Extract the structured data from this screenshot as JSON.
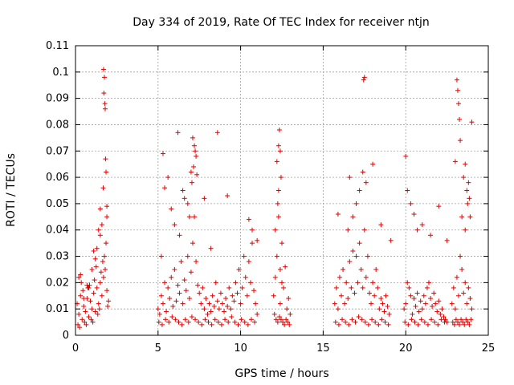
{
  "chart_data": {
    "type": "scatter",
    "title": "Day 334 of 2019, Rate Of TEC Index for receiver ntjn",
    "xlabel": "GPS time / hours",
    "ylabel": "ROTI / TECUs",
    "xlim": [
      0,
      25
    ],
    "ylim": [
      0,
      0.11
    ],
    "xticks": [
      "0",
      "5",
      "10",
      "15",
      "20",
      "25"
    ],
    "yticks": [
      "0",
      "0.01",
      "0.02",
      "0.03",
      "0.04",
      "0.05",
      "0.06",
      "0.07",
      "0.08",
      "0.09",
      "0.1",
      "0.11"
    ],
    "grid": true,
    "marker": "+",
    "color": "#e00000",
    "series": [
      {
        "name": "ROTI",
        "x": [
          0.1,
          0.2,
          0.3,
          0.4,
          0.5,
          0.6,
          0.7,
          0.8,
          0.9,
          1.0,
          1.1,
          1.2,
          1.3,
          1.4,
          1.5,
          1.6,
          1.7,
          1.8,
          1.9,
          2.0,
          0.15,
          0.35,
          0.55,
          0.75,
          0.95,
          1.15,
          1.35,
          1.55,
          1.75,
          1.95,
          0.25,
          0.45,
          0.65,
          0.85,
          1.05,
          1.25,
          1.45,
          1.65,
          1.85,
          0.3,
          0.7,
          1.1,
          1.5,
          1.9,
          1.7,
          1.75,
          1.72,
          1.78,
          1.8,
          1.82,
          1.68,
          1.85,
          1.9,
          1.6,
          1.3,
          1.5,
          1.4,
          1.2,
          1.0,
          0.8,
          0.5,
          0.2,
          5.0,
          5.1,
          5.2,
          5.3,
          5.4,
          5.5,
          5.6,
          5.7,
          5.8,
          5.9,
          6.0,
          6.1,
          6.2,
          6.3,
          6.4,
          6.5,
          6.6,
          6.7,
          6.8,
          6.9,
          7.0,
          7.1,
          7.2,
          7.3,
          7.4,
          7.5,
          7.6,
          7.7,
          7.8,
          7.9,
          8.0,
          8.1,
          8.2,
          8.3,
          8.4,
          8.5,
          8.6,
          8.7,
          8.8,
          8.9,
          9.0,
          9.1,
          9.2,
          9.3,
          9.4,
          9.5,
          9.6,
          9.7,
          9.8,
          9.9,
          10.0,
          10.1,
          10.2,
          10.3,
          10.4,
          10.5,
          10.6,
          10.7,
          10.8,
          10.9,
          11.0,
          5.05,
          5.25,
          5.45,
          5.65,
          5.85,
          6.05,
          6.25,
          6.45,
          6.65,
          6.85,
          7.05,
          7.25,
          7.45,
          7.65,
          7.85,
          8.05,
          8.25,
          8.45,
          8.65,
          8.85,
          9.05,
          9.25,
          9.45,
          9.65,
          9.85,
          10.05,
          10.25,
          10.45,
          10.65,
          10.85,
          5.2,
          5.4,
          5.6,
          5.8,
          6.0,
          6.3,
          6.6,
          6.9,
          7.0,
          7.1,
          7.2,
          7.3,
          7.15,
          7.25,
          7.05,
          7.35,
          6.2,
          6.5,
          6.8,
          5.3,
          8.6,
          9.2,
          10.5,
          10.7,
          11.0,
          7.8,
          8.2,
          12.0,
          12.1,
          12.2,
          12.3,
          12.4,
          12.5,
          12.6,
          12.7,
          12.8,
          12.9,
          13.0,
          12.05,
          12.15,
          12.25,
          12.35,
          12.45,
          12.55,
          12.65,
          12.75,
          12.85,
          12.95,
          12.2,
          12.3,
          12.35,
          12.4,
          12.45,
          12.3,
          12.25,
          12.5,
          12.1,
          12.4,
          15.7,
          15.8,
          15.9,
          16.0,
          16.1,
          16.2,
          16.3,
          16.4,
          16.5,
          16.6,
          16.7,
          16.8,
          16.9,
          17.0,
          17.1,
          17.2,
          17.3,
          17.4,
          17.5,
          17.6,
          17.7,
          17.8,
          17.9,
          18.0,
          18.1,
          18.2,
          18.3,
          18.4,
          18.5,
          18.6,
          18.7,
          18.8,
          18.9,
          19.0,
          15.75,
          15.95,
          16.15,
          16.35,
          16.55,
          16.75,
          16.95,
          17.15,
          17.35,
          17.55,
          17.75,
          17.95,
          18.15,
          18.35,
          18.55,
          18.75,
          18.95,
          16.6,
          16.8,
          17.0,
          17.2,
          17.4,
          17.6,
          17.5,
          17.45,
          18.0,
          18.5,
          19.1,
          15.9,
          16.5,
          19.9,
          20.0,
          20.1,
          20.2,
          20.3,
          20.4,
          20.5,
          20.6,
          20.7,
          20.8,
          20.9,
          21.0,
          21.1,
          21.2,
          21.3,
          21.4,
          21.5,
          21.6,
          21.7,
          21.8,
          21.9,
          22.0,
          22.1,
          22.2,
          22.3,
          22.4,
          22.5,
          19.95,
          20.15,
          20.35,
          20.55,
          20.75,
          20.95,
          21.15,
          21.35,
          21.55,
          21.75,
          21.95,
          22.15,
          22.35,
          20.0,
          20.1,
          20.3,
          20.5,
          20.7,
          21.0,
          21.5,
          22.0,
          22.5,
          22.8,
          22.9,
          23.0,
          23.1,
          23.2,
          23.3,
          23.4,
          23.5,
          23.6,
          23.7,
          23.8,
          23.9,
          24.0,
          22.85,
          22.95,
          23.05,
          23.15,
          23.25,
          23.35,
          23.45,
          23.55,
          23.65,
          23.75,
          23.85,
          23.95,
          23.1,
          23.15,
          23.2,
          23.25,
          23.3,
          23.5,
          23.6,
          23.7,
          23.75,
          23.8,
          23.85,
          23.9,
          24.0,
          23.0,
          23.4,
          23.6
        ],
        "y": [
          0.012,
          0.008,
          0.015,
          0.006,
          0.011,
          0.009,
          0.014,
          0.007,
          0.013,
          0.01,
          0.016,
          0.009,
          0.018,
          0.012,
          0.02,
          0.015,
          0.022,
          0.025,
          0.017,
          0.013,
          0.004,
          0.02,
          0.005,
          0.018,
          0.006,
          0.021,
          0.008,
          0.024,
          0.03,
          0.011,
          0.003,
          0.017,
          0.004,
          0.019,
          0.005,
          0.026,
          0.01,
          0.028,
          0.035,
          0.023,
          0.019,
          0.032,
          0.038,
          0.045,
          0.101,
          0.098,
          0.092,
          0.088,
          0.086,
          0.067,
          0.056,
          0.062,
          0.049,
          0.042,
          0.033,
          0.048,
          0.04,
          0.029,
          0.025,
          0.018,
          0.014,
          0.022,
          0.01,
          0.008,
          0.015,
          0.012,
          0.02,
          0.009,
          0.018,
          0.014,
          0.022,
          0.011,
          0.025,
          0.013,
          0.019,
          0.016,
          0.028,
          0.012,
          0.021,
          0.017,
          0.03,
          0.014,
          0.024,
          0.035,
          0.045,
          0.028,
          0.019,
          0.016,
          0.012,
          0.018,
          0.01,
          0.014,
          0.008,
          0.012,
          0.009,
          0.015,
          0.011,
          0.02,
          0.013,
          0.01,
          0.016,
          0.012,
          0.009,
          0.014,
          0.011,
          0.018,
          0.01,
          0.015,
          0.013,
          0.02,
          0.016,
          0.025,
          0.012,
          0.018,
          0.03,
          0.022,
          0.015,
          0.028,
          0.02,
          0.035,
          0.017,
          0.012,
          0.008,
          0.005,
          0.004,
          0.006,
          0.005,
          0.007,
          0.006,
          0.005,
          0.004,
          0.006,
          0.005,
          0.007,
          0.006,
          0.005,
          0.004,
          0.006,
          0.005,
          0.004,
          0.006,
          0.005,
          0.004,
          0.006,
          0.005,
          0.007,
          0.005,
          0.004,
          0.006,
          0.005,
          0.004,
          0.006,
          0.005,
          0.03,
          0.056,
          0.06,
          0.048,
          0.042,
          0.038,
          0.052,
          0.045,
          0.062,
          0.075,
          0.072,
          0.068,
          0.064,
          0.07,
          0.058,
          0.061,
          0.077,
          0.055,
          0.05,
          0.069,
          0.077,
          0.053,
          0.044,
          0.04,
          0.036,
          0.052,
          0.033,
          0.015,
          0.022,
          0.03,
          0.045,
          0.012,
          0.02,
          0.018,
          0.026,
          0.01,
          0.014,
          0.008,
          0.008,
          0.006,
          0.005,
          0.007,
          0.006,
          0.005,
          0.004,
          0.006,
          0.005,
          0.004,
          0.066,
          0.072,
          0.078,
          0.07,
          0.06,
          0.055,
          0.05,
          0.035,
          0.04,
          0.025,
          0.012,
          0.018,
          0.01,
          0.022,
          0.015,
          0.025,
          0.012,
          0.02,
          0.014,
          0.028,
          0.018,
          0.032,
          0.016,
          0.03,
          0.02,
          0.035,
          0.025,
          0.018,
          0.04,
          0.022,
          0.03,
          0.016,
          0.012,
          0.02,
          0.015,
          0.025,
          0.018,
          0.01,
          0.014,
          0.012,
          0.009,
          0.015,
          0.011,
          0.008,
          0.005,
          0.004,
          0.006,
          0.005,
          0.004,
          0.006,
          0.005,
          0.007,
          0.006,
          0.005,
          0.004,
          0.006,
          0.005,
          0.004,
          0.006,
          0.005,
          0.004,
          0.06,
          0.045,
          0.05,
          0.055,
          0.062,
          0.058,
          0.098,
          0.097,
          0.065,
          0.042,
          0.036,
          0.046,
          0.04,
          0.01,
          0.012,
          0.02,
          0.018,
          0.015,
          0.008,
          0.014,
          0.011,
          0.016,
          0.009,
          0.013,
          0.01,
          0.015,
          0.012,
          0.018,
          0.02,
          0.014,
          0.011,
          0.016,
          0.012,
          0.009,
          0.013,
          0.008,
          0.01,
          0.007,
          0.006,
          0.005,
          0.005,
          0.004,
          0.006,
          0.005,
          0.004,
          0.006,
          0.005,
          0.004,
          0.006,
          0.005,
          0.004,
          0.006,
          0.005,
          0.068,
          0.055,
          0.05,
          0.046,
          0.04,
          0.042,
          0.038,
          0.049,
          0.036,
          0.012,
          0.018,
          0.01,
          0.022,
          0.015,
          0.03,
          0.025,
          0.016,
          0.02,
          0.012,
          0.018,
          0.014,
          0.01,
          0.005,
          0.004,
          0.006,
          0.005,
          0.004,
          0.006,
          0.005,
          0.004,
          0.006,
          0.005,
          0.004,
          0.006,
          0.097,
          0.093,
          0.088,
          0.082,
          0.074,
          0.06,
          0.065,
          0.055,
          0.05,
          0.058,
          0.052,
          0.045,
          0.081,
          0.066,
          0.045,
          0.04
        ]
      }
    ]
  }
}
